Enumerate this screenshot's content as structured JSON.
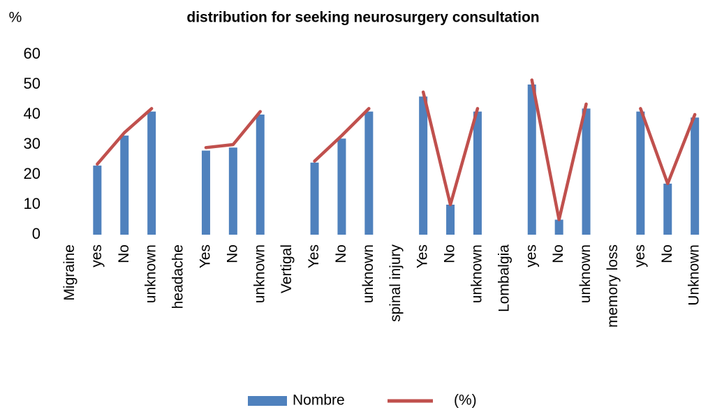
{
  "chart_data": {
    "type": "bar_line",
    "title": "distribution for seeking neurosurgery consultation",
    "y_label": "%",
    "categories": [
      "Migraine",
      "yes",
      "No",
      "unknown",
      "headache",
      "Yes",
      "No",
      "unknown",
      "Vertigal",
      "Yes",
      "No",
      "unknown",
      "spinal injury",
      "Yes",
      "No",
      "unknown",
      "Lombalgia",
      "yes",
      "No",
      "unknown",
      "memory loss",
      "yes",
      "No",
      "Unknown"
    ],
    "series": [
      {
        "name": "Nombre",
        "type": "bar",
        "color": "#4f81bd",
        "values": [
          null,
          23,
          33,
          41,
          null,
          28,
          29,
          40,
          null,
          24,
          32,
          41,
          null,
          46,
          10,
          41,
          null,
          50,
          5,
          42,
          null,
          41,
          17,
          39
        ]
      },
      {
        "name": "(%)",
        "type": "line",
        "color": "#c0504d",
        "values": [
          null,
          23.5,
          34,
          42,
          null,
          29,
          30,
          41,
          null,
          24.5,
          33,
          42,
          null,
          47.5,
          10,
          42,
          null,
          51.5,
          5,
          43.5,
          null,
          42,
          17,
          40
        ]
      }
    ],
    "ylim": [
      0,
      60
    ],
    "yticks": [
      0,
      10,
      20,
      30,
      40,
      50,
      60
    ],
    "grid": false,
    "legend": "bottom"
  }
}
